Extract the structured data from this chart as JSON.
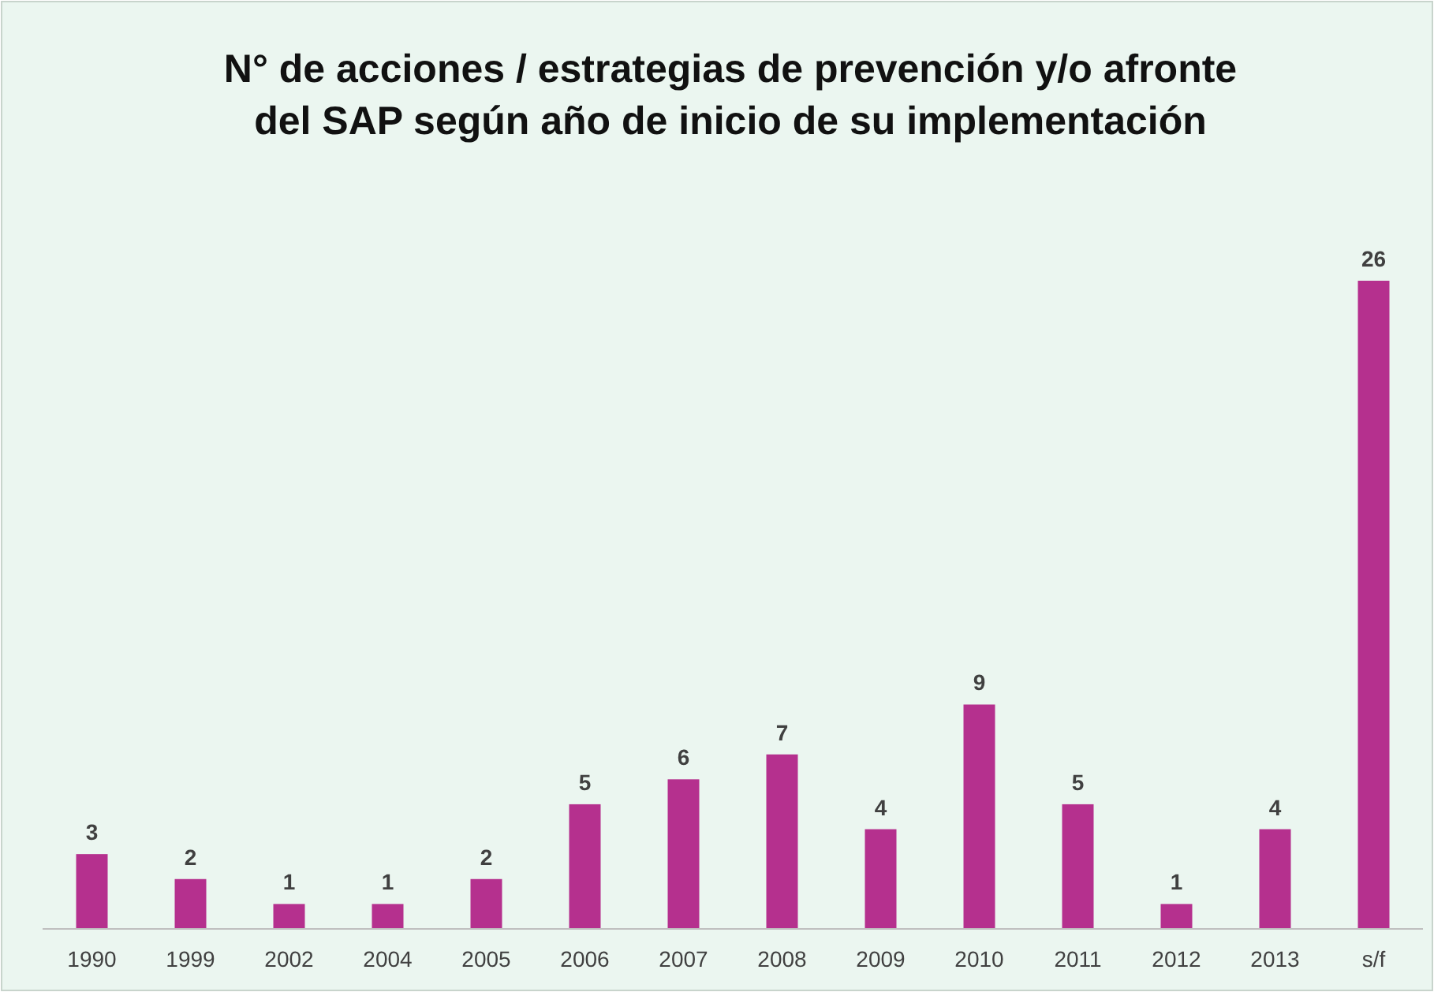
{
  "chart_data": {
    "type": "bar",
    "title": "N° de acciones / estrategias de prevención y/o afronte\ndel SAP según año de inicio de su implementación",
    "categories": [
      "1990",
      "1999",
      "2002",
      "2004",
      "2005",
      "2006",
      "2007",
      "2008",
      "2009",
      "2010",
      "2011",
      "2012",
      "2013",
      "s/f"
    ],
    "values": [
      3,
      2,
      1,
      1,
      2,
      5,
      6,
      7,
      4,
      9,
      5,
      1,
      4,
      26
    ],
    "color": "#b5308e",
    "data_labels": true
  }
}
